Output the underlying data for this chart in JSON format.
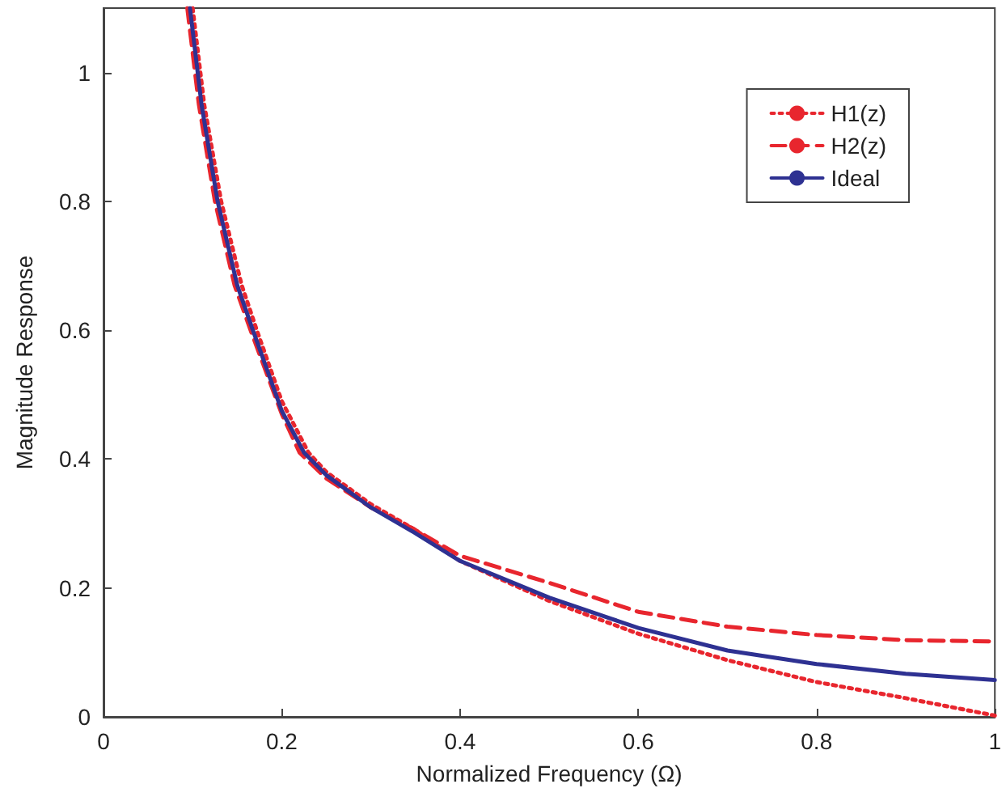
{
  "chart_data": {
    "type": "line",
    "xlabel": "Normalized Frequency (Ω)",
    "ylabel": "Magnitude Response",
    "xlim": [
      0,
      1
    ],
    "xticks": [
      0,
      0.2,
      0.4,
      0.6,
      0.8,
      1
    ],
    "ylim": [
      0,
      1.1
    ],
    "yticks": [
      0,
      0.2,
      0.4,
      0.6,
      0.8,
      1
    ],
    "grid": false,
    "legend": "top right",
    "marker": "none",
    "series": [
      {
        "name": "H1(z)",
        "color": "#e8262e",
        "line_style": "dotted",
        "x": [
          0.1,
          0.113,
          0.132,
          0.155,
          0.172,
          0.2,
          0.23,
          0.25,
          0.3,
          0.35,
          0.4,
          0.5,
          0.6,
          0.7,
          0.8,
          0.9,
          1.0
        ],
        "values": [
          1.1,
          0.95,
          0.8,
          0.67,
          0.6,
          0.49,
          0.41,
          0.38,
          0.33,
          0.29,
          0.242,
          0.18,
          0.129,
          0.088,
          0.054,
          0.029,
          0.002
        ]
      },
      {
        "name": "H2(z)",
        "color": "#e8262e",
        "line_style": "dashed",
        "x": [
          0.094,
          0.107,
          0.125,
          0.147,
          0.165,
          0.2,
          0.22,
          0.25,
          0.3,
          0.35,
          0.4,
          0.5,
          0.6,
          0.7,
          0.8,
          0.9,
          1.0
        ],
        "values": [
          1.1,
          0.95,
          0.8,
          0.67,
          0.6,
          0.47,
          0.41,
          0.37,
          0.325,
          0.29,
          0.25,
          0.208,
          0.163,
          0.14,
          0.127,
          0.119,
          0.117
        ]
      },
      {
        "name": "Ideal",
        "color": "#2e3192",
        "line_style": "solid",
        "x": [
          0.097,
          0.11,
          0.128,
          0.15,
          0.1676,
          0.2,
          0.225,
          0.25,
          0.3,
          0.35,
          0.4,
          0.5,
          0.6,
          0.7,
          0.8,
          0.9,
          1.0
        ],
        "values": [
          1.1,
          0.95,
          0.8,
          0.67,
          0.6,
          0.475,
          0.41,
          0.375,
          0.325,
          0.285,
          0.242,
          0.185,
          0.138,
          0.103,
          0.082,
          0.067,
          0.057
        ]
      }
    ]
  }
}
